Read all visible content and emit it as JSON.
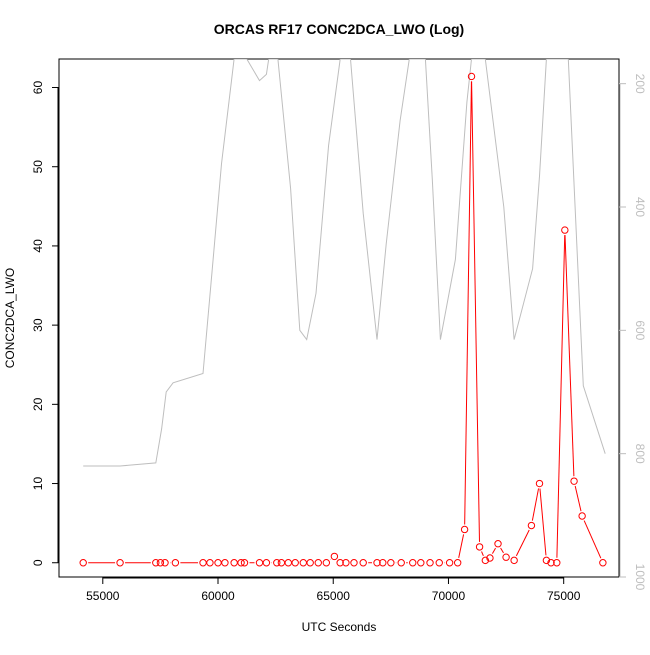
{
  "chart_data": {
    "type": "line",
    "title": "ORCAS RF17 CONC2DCA_LWO (Log)",
    "xlabel": "UTC Seconds",
    "ylabel": "CONC2DCA_LWO",
    "xlim": [
      53100,
      77400
    ],
    "ylim": [
      -1.8,
      63.6
    ],
    "y2lim": [
      1000,
      160
    ],
    "y2_reversed": true,
    "grid": false,
    "x_ticks": [
      55000,
      60000,
      65000,
      70000,
      75000
    ],
    "x_tick_labels": [
      "55000",
      "60000",
      "65000",
      "70000",
      "75000"
    ],
    "y_ticks": [
      0,
      10,
      20,
      30,
      40,
      50,
      60
    ],
    "y_tick_labels": [
      "0",
      "10",
      "20",
      "30",
      "40",
      "50",
      "60"
    ],
    "y2_ticks": [
      200,
      400,
      600,
      800,
      1000
    ],
    "y2_tick_labels": [
      "200",
      "400",
      "600",
      "800",
      "1000"
    ],
    "colors": {
      "primary": "#ff0000",
      "secondary": "#bebebe",
      "axis": "#000000",
      "axis2": "#bebebe"
    },
    "series": [
      {
        "axis": "left",
        "style": "line+points",
        "x": [
          54150,
          55750,
          57300,
          57500,
          57700,
          58150,
          59350,
          59650,
          60000,
          60300,
          60700,
          61000,
          61150,
          61800,
          62100,
          62550,
          62750,
          63050,
          63350,
          63700,
          64000,
          64350,
          64700,
          65050,
          65300,
          65550,
          65900,
          66300,
          66900,
          67150,
          67500,
          67950,
          68450,
          68800,
          69200,
          69600,
          70050,
          70400,
          70700,
          71000,
          71350,
          71600,
          71800,
          72150,
          72500,
          72850,
          73600,
          73950,
          74250,
          74450,
          74700,
          75050,
          75450,
          75800,
          76700
        ],
        "y": [
          0,
          0,
          0,
          0,
          0,
          0,
          0,
          0,
          0,
          0,
          0,
          0,
          0,
          0,
          0,
          0,
          0,
          0,
          0,
          0,
          0,
          0,
          0,
          0.8,
          0,
          0,
          0,
          0,
          0,
          0,
          0,
          0,
          0,
          0,
          0,
          0,
          0,
          0,
          4.2,
          61.4,
          2.0,
          0.3,
          0.6,
          2.4,
          0.7,
          0.3,
          4.7,
          10.0,
          0.3,
          0,
          0,
          42.0,
          10.3,
          5.9,
          0
        ]
      },
      {
        "axis": "right",
        "style": "line",
        "x": [
          54150,
          55750,
          57300,
          57550,
          57750,
          58050,
          59350,
          59750,
          60150,
          60700,
          60850,
          61250,
          61800,
          62100,
          62200,
          62600,
          63150,
          63550,
          63850,
          64250,
          64800,
          65300,
          65750,
          66300,
          66900,
          67300,
          67900,
          68300,
          69000,
          69300,
          69650,
          70300,
          70800,
          71000,
          71200,
          71600,
          72400,
          72850,
          73650,
          73950,
          74250,
          74550,
          75200,
          75850,
          76800
        ],
        "y": [
          820,
          820,
          815,
          760,
          700,
          685,
          670,
          500,
          330,
          160,
          160,
          160,
          195,
          185,
          160,
          160,
          370,
          600,
          615,
          540,
          300,
          160,
          160,
          410,
          615,
          460,
          260,
          160,
          160,
          355,
          615,
          485,
          230,
          160,
          160,
          160,
          400,
          615,
          500,
          350,
          160,
          160,
          160,
          690,
          800
        ]
      }
    ]
  }
}
